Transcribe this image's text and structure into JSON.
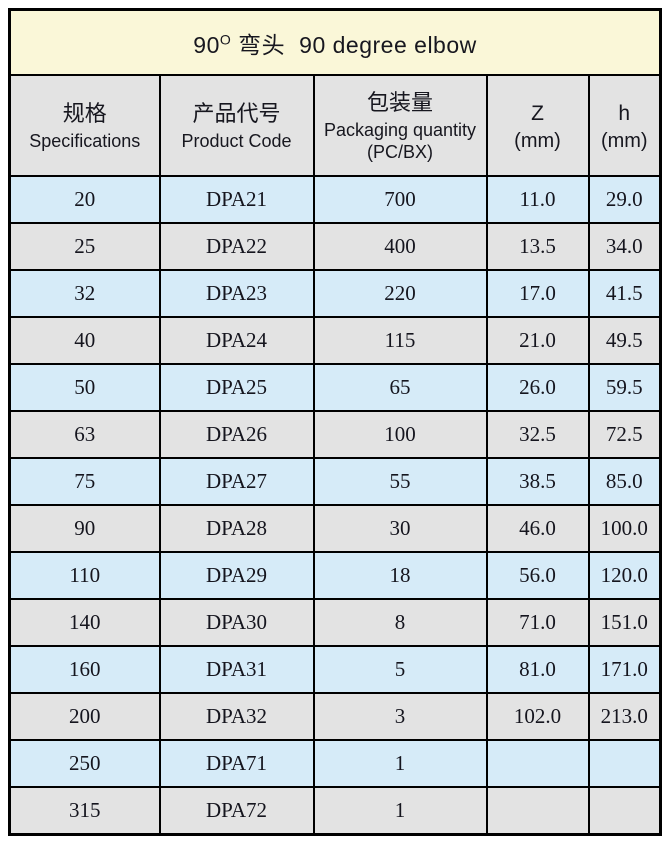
{
  "table": {
    "title": {
      "num": "90",
      "degree": "O",
      "zh": "弯头",
      "en": "90 degree elbow"
    },
    "columns": [
      {
        "line1": "规格",
        "line2": "Specifications"
      },
      {
        "line1": "产品代号",
        "line2": "Product Code"
      },
      {
        "line1": "包装量",
        "line2": "Packaging quantity",
        "line3": "(PC/BX)"
      },
      {
        "line1": "Z",
        "line2": "(mm)"
      },
      {
        "line1": "h",
        "line2": "(mm)"
      }
    ],
    "rows": [
      [
        "20",
        "DPA21",
        "700",
        "11.0",
        "29.0"
      ],
      [
        "25",
        "DPA22",
        "400",
        "13.5",
        "34.0"
      ],
      [
        "32",
        "DPA23",
        "220",
        "17.0",
        "41.5"
      ],
      [
        "40",
        "DPA24",
        "115",
        "21.0",
        "49.5"
      ],
      [
        "50",
        "DPA25",
        "65",
        "26.0",
        "59.5"
      ],
      [
        "63",
        "DPA26",
        "100",
        "32.5",
        "72.5"
      ],
      [
        "75",
        "DPA27",
        "55",
        "38.5",
        "85.0"
      ],
      [
        "90",
        "DPA28",
        "30",
        "46.0",
        "100.0"
      ],
      [
        "110",
        "DPA29",
        "18",
        "56.0",
        "120.0"
      ],
      [
        "140",
        "DPA30",
        "8",
        "71.0",
        "151.0"
      ],
      [
        "160",
        "DPA31",
        "5",
        "81.0",
        "171.0"
      ],
      [
        "200",
        "DPA32",
        "3",
        "102.0",
        "213.0"
      ],
      [
        "250",
        "DPA71",
        "1",
        "",
        ""
      ],
      [
        "315",
        "DPA72",
        "1",
        "",
        ""
      ]
    ],
    "colors": {
      "title_bg": "#faf7d8",
      "header_bg": "#e3e3e3",
      "row_blue": "#d6ebf8",
      "row_gray": "#e3e3e3",
      "border": "#000000",
      "text": "#15151e"
    }
  }
}
